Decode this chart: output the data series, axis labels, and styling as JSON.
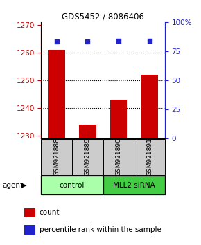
{
  "title": "GDS5452 / 8086406",
  "samples": [
    "GSM921888",
    "GSM921889",
    "GSM921890",
    "GSM921891"
  ],
  "counts": [
    1261,
    1234,
    1243,
    1252
  ],
  "percentiles": [
    83,
    83,
    84,
    84
  ],
  "ylim_left": [
    1229,
    1271
  ],
  "ylim_right": [
    0,
    100
  ],
  "yticks_left": [
    1230,
    1240,
    1250,
    1260,
    1270
  ],
  "yticks_right": [
    0,
    25,
    50,
    75,
    100
  ],
  "ytick_labels_right": [
    "0",
    "25",
    "50",
    "75",
    "100%"
  ],
  "bar_color": "#cc0000",
  "dot_color": "#2222cc",
  "bar_width": 0.55,
  "groups": [
    {
      "label": "control",
      "indices": [
        0,
        1
      ],
      "color": "#aaffaa"
    },
    {
      "label": "MLL2 siRNA",
      "indices": [
        2,
        3
      ],
      "color": "#44cc44"
    }
  ],
  "legend_count_label": "count",
  "legend_percentile_label": "percentile rank within the sample",
  "sample_box_color": "#cccccc",
  "dotted_lines": [
    1240,
    1250,
    1260
  ]
}
